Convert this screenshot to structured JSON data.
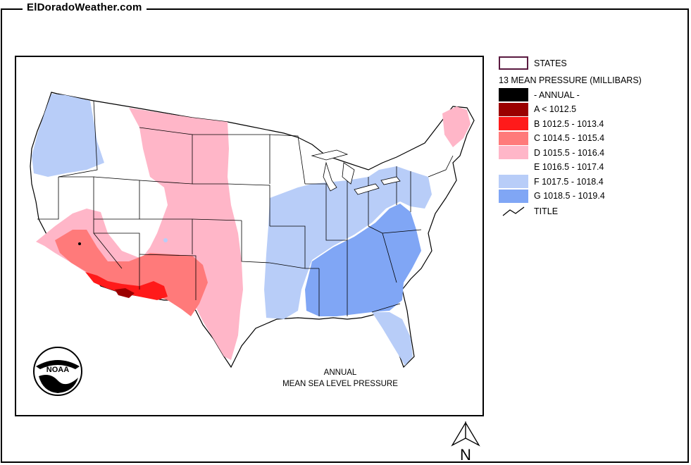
{
  "site": {
    "title": "ElDoradoWeather.com"
  },
  "map": {
    "caption_line1": "ANNUAL",
    "caption_line2": "MEAN SEA LEVEL PRESSURE",
    "logo_icon": "noaa-logo-icon",
    "north_label": "N"
  },
  "legend": {
    "states_label": "STATES",
    "heading": "13 MEAN PRESSURE (MILLIBARS)",
    "items": [
      {
        "label": "- ANNUAL -",
        "color": "#000000"
      },
      {
        "label": "A < 1012.5",
        "color": "#9b0000"
      },
      {
        "label": "B 1012.5 - 1013.4",
        "color": "#ff1a1a"
      },
      {
        "label": "C 1014.5 - 1015.4",
        "color": "#ff7a7a"
      },
      {
        "label": "D 1015.5 - 1016.4",
        "color": "#ffb6c8"
      },
      {
        "label": "E 1016.5 - 1017.4",
        "color": "#ffffff"
      },
      {
        "label": "F 1017.5 - 1018.4",
        "color": "#b8cdf8"
      },
      {
        "label": "G 1018.5 - 1019.4",
        "color": "#80a6f5"
      }
    ],
    "title_label": "TITLE"
  }
}
